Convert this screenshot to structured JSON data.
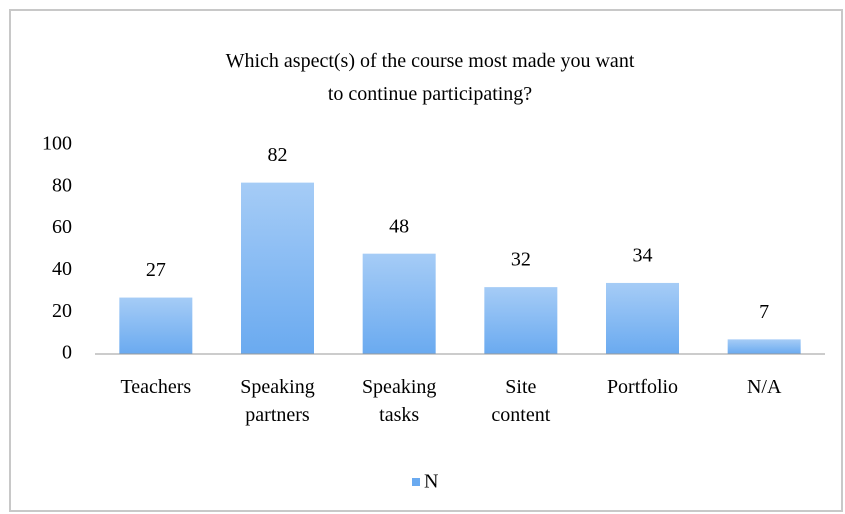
{
  "chart_data": {
    "type": "bar",
    "title": "Which aspect(s) of the course most made you want to continue participating?",
    "categories": [
      "Teachers",
      "Speaking partners",
      "Speaking tasks",
      "Site content",
      "Portfolio",
      "N/A"
    ],
    "series": [
      {
        "name": "N",
        "color": "#6aaaf0",
        "values": [
          27,
          82,
          48,
          32,
          34,
          7
        ]
      }
    ],
    "ylim": [
      0,
      100
    ],
    "yticks": [
      0,
      20,
      40,
      60,
      80,
      100
    ],
    "grid": false,
    "legend": "bottom"
  }
}
